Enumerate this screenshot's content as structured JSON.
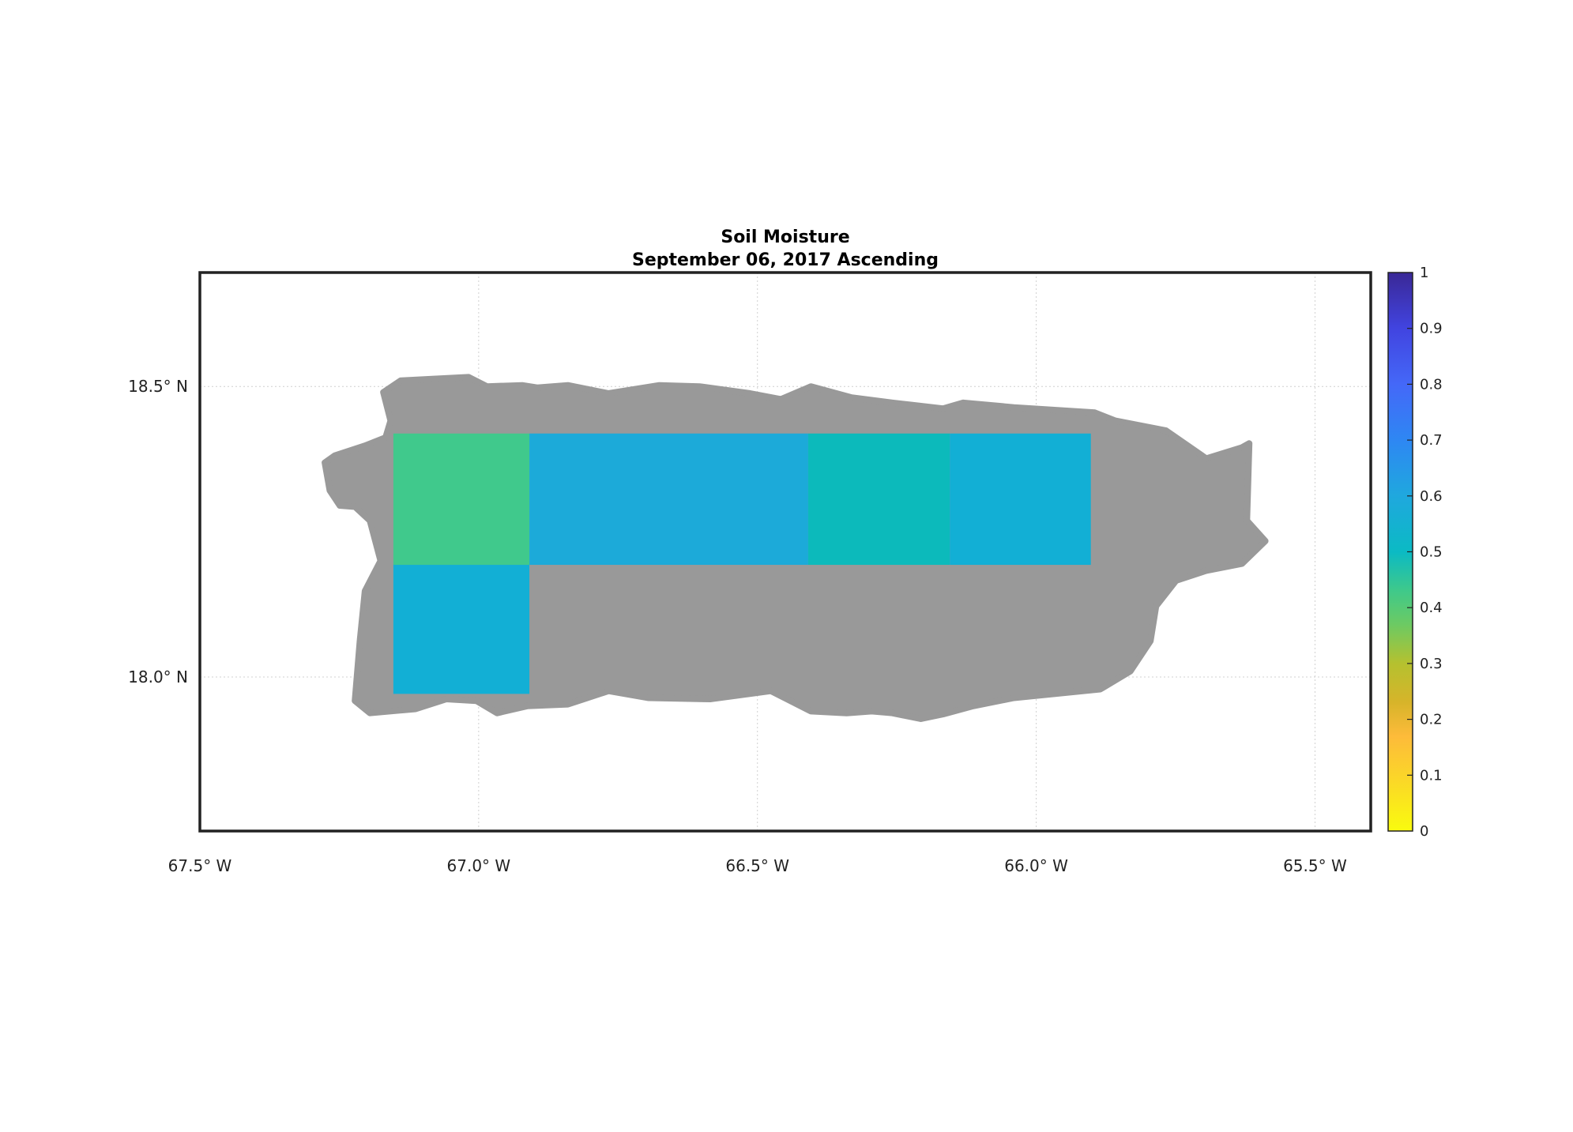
{
  "chart_data": {
    "type": "heatmap",
    "title": "Soil Moisture",
    "subtitle": "September 06, 2017 Ascending",
    "xlabel": "",
    "ylabel": "",
    "xlim": [
      -67.5,
      -65.4
    ],
    "ylim": [
      17.735,
      18.696
    ],
    "grid": true,
    "x_ticks": [
      {
        "value": -67.5,
        "label": "67.5° W"
      },
      {
        "value": -67.0,
        "label": "67.0° W"
      },
      {
        "value": -66.5,
        "label": "66.5° W"
      },
      {
        "value": -66.0,
        "label": "66.0° W"
      },
      {
        "value": -65.5,
        "label": "65.5° W"
      }
    ],
    "y_ticks": [
      {
        "value": 18.5,
        "label": "18.5° N"
      },
      {
        "value": 18.0,
        "label": "18.0° N"
      }
    ],
    "land_mask_color": "#999999",
    "land_outline_lonlat": [
      [
        -67.171,
        18.49
      ],
      [
        -67.14,
        18.51
      ],
      [
        -67.018,
        18.516
      ],
      [
        -66.985,
        18.5
      ],
      [
        -66.922,
        18.502
      ],
      [
        -66.895,
        18.498
      ],
      [
        -66.84,
        18.502
      ],
      [
        -66.767,
        18.488
      ],
      [
        -66.676,
        18.502
      ],
      [
        -66.604,
        18.5
      ],
      [
        -66.513,
        18.488
      ],
      [
        -66.458,
        18.478
      ],
      [
        -66.404,
        18.5
      ],
      [
        -66.331,
        18.481
      ],
      [
        -66.258,
        18.472
      ],
      [
        -66.167,
        18.462
      ],
      [
        -66.131,
        18.472
      ],
      [
        -66.04,
        18.464
      ],
      [
        -65.895,
        18.455
      ],
      [
        -65.858,
        18.441
      ],
      [
        -65.767,
        18.424
      ],
      [
        -65.695,
        18.376
      ],
      [
        -65.631,
        18.395
      ],
      [
        -65.618,
        18.402
      ],
      [
        -65.622,
        18.269
      ],
      [
        -65.589,
        18.234
      ],
      [
        -65.631,
        18.195
      ],
      [
        -65.695,
        18.183
      ],
      [
        -65.749,
        18.166
      ],
      [
        -65.785,
        18.122
      ],
      [
        -65.795,
        18.062
      ],
      [
        -65.831,
        18.01
      ],
      [
        -65.885,
        17.979
      ],
      [
        -66.04,
        17.964
      ],
      [
        -66.113,
        17.95
      ],
      [
        -66.167,
        17.936
      ],
      [
        -66.207,
        17.928
      ],
      [
        -66.258,
        17.938
      ],
      [
        -66.295,
        17.941
      ],
      [
        -66.34,
        17.938
      ],
      [
        -66.404,
        17.941
      ],
      [
        -66.476,
        17.976
      ],
      [
        -66.585,
        17.962
      ],
      [
        -66.695,
        17.964
      ],
      [
        -66.767,
        17.976
      ],
      [
        -66.84,
        17.953
      ],
      [
        -66.913,
        17.95
      ],
      [
        -66.967,
        17.938
      ],
      [
        -67.004,
        17.959
      ],
      [
        -67.058,
        17.962
      ],
      [
        -67.113,
        17.945
      ],
      [
        -67.195,
        17.938
      ],
      [
        -67.222,
        17.959
      ],
      [
        -67.213,
        18.062
      ],
      [
        -67.204,
        18.148
      ],
      [
        -67.176,
        18.2
      ],
      [
        -67.195,
        18.269
      ],
      [
        -67.222,
        18.293
      ],
      [
        -67.249,
        18.295
      ],
      [
        -67.267,
        18.321
      ],
      [
        -67.276,
        18.369
      ],
      [
        -67.258,
        18.381
      ],
      [
        -67.204,
        18.398
      ],
      [
        -67.167,
        18.412
      ],
      [
        -67.158,
        18.441
      ]
    ],
    "cells": [
      {
        "lon": [
          -67.153,
          -66.909
        ],
        "lat": [
          18.193,
          18.419
        ],
        "value": 0.43,
        "color": "#40c98c"
      },
      {
        "lon": [
          -67.153,
          -66.909
        ],
        "lat": [
          17.971,
          18.193
        ],
        "value": 0.57,
        "color": "#12afd5"
      },
      {
        "lon": [
          -66.909,
          -66.409
        ],
        "lat": [
          18.193,
          18.419
        ],
        "value": 0.62,
        "color": "#1caad9"
      },
      {
        "lon": [
          -66.409,
          -66.155
        ],
        "lat": [
          18.193,
          18.419
        ],
        "value": 0.52,
        "color": "#0cbabb"
      },
      {
        "lon": [
          -66.155,
          -65.902
        ],
        "lat": [
          18.193,
          18.419
        ],
        "value": 0.57,
        "color": "#12afd5"
      }
    ],
    "colorbar": {
      "range": [
        0,
        1
      ],
      "ticks": [
        "0",
        "0.1",
        "0.2",
        "0.3",
        "0.4",
        "0.5",
        "0.6",
        "0.7",
        "0.8",
        "0.9",
        "1"
      ],
      "colormap": [
        [
          0.0,
          "#f9fb0e"
        ],
        [
          0.1,
          "#fbd42a"
        ],
        [
          0.17,
          "#fdbb3a"
        ],
        [
          0.23,
          "#d7b42a"
        ],
        [
          0.3,
          "#b5c12f"
        ],
        [
          0.37,
          "#6cca63"
        ],
        [
          0.43,
          "#3fc98a"
        ],
        [
          0.5,
          "#0bbac4"
        ],
        [
          0.6,
          "#1fa8de"
        ],
        [
          0.7,
          "#2e87f3"
        ],
        [
          0.8,
          "#4468f8"
        ],
        [
          0.9,
          "#4144e0"
        ],
        [
          1.0,
          "#3a2896"
        ]
      ]
    }
  }
}
